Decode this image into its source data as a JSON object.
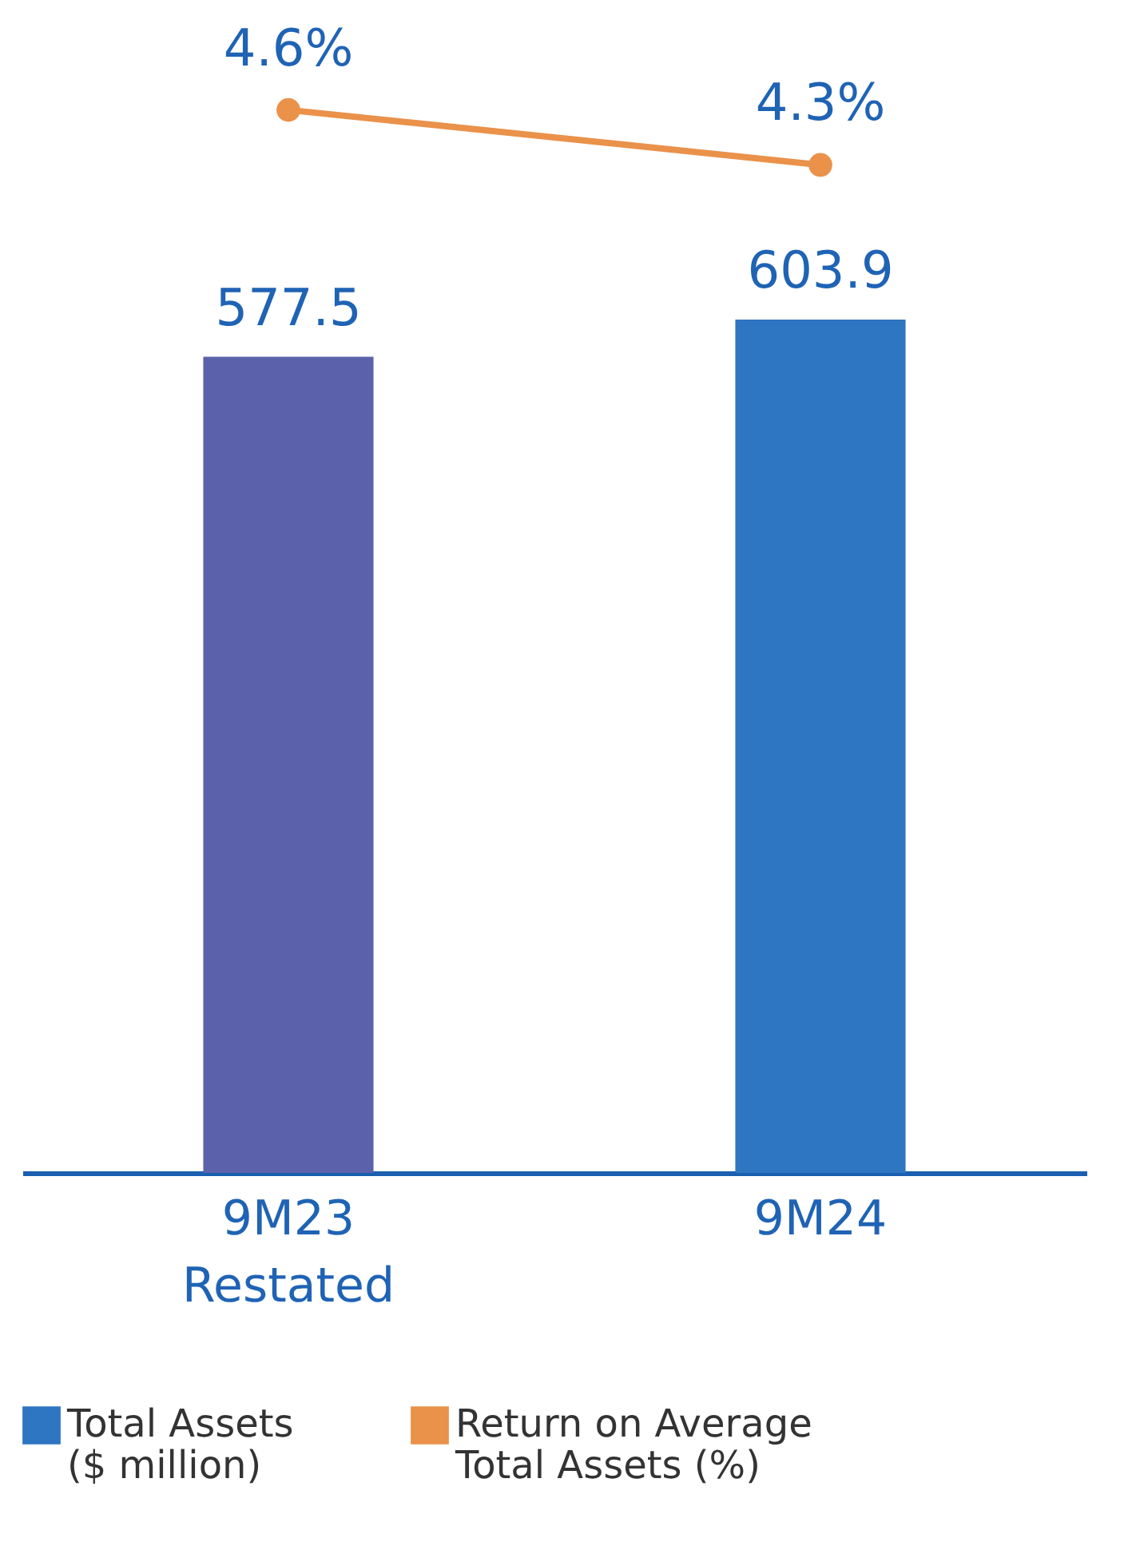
{
  "chart_data": {
    "type": "bar",
    "categories": [
      "9M23 Restated",
      "9M24"
    ],
    "series": [
      {
        "name": "Total Assets ($ million)",
        "colors": [
          "#5b62ab",
          "#2e75c2"
        ],
        "values": [
          577.5,
          603.9
        ],
        "value_labels": [
          "577.5",
          "603.9"
        ]
      },
      {
        "name": "Return on Average Total Assets (%)",
        "type": "line",
        "axis": "y2",
        "color": "#ea914a",
        "values": [
          4.6,
          4.3
        ],
        "value_labels": [
          "4.6%",
          "4.3%"
        ]
      }
    ],
    "ylim": [
      0,
      830
    ],
    "y2lim": [
      -1.2,
      5.2
    ],
    "marker": "circle",
    "legend": "bottom"
  }
}
